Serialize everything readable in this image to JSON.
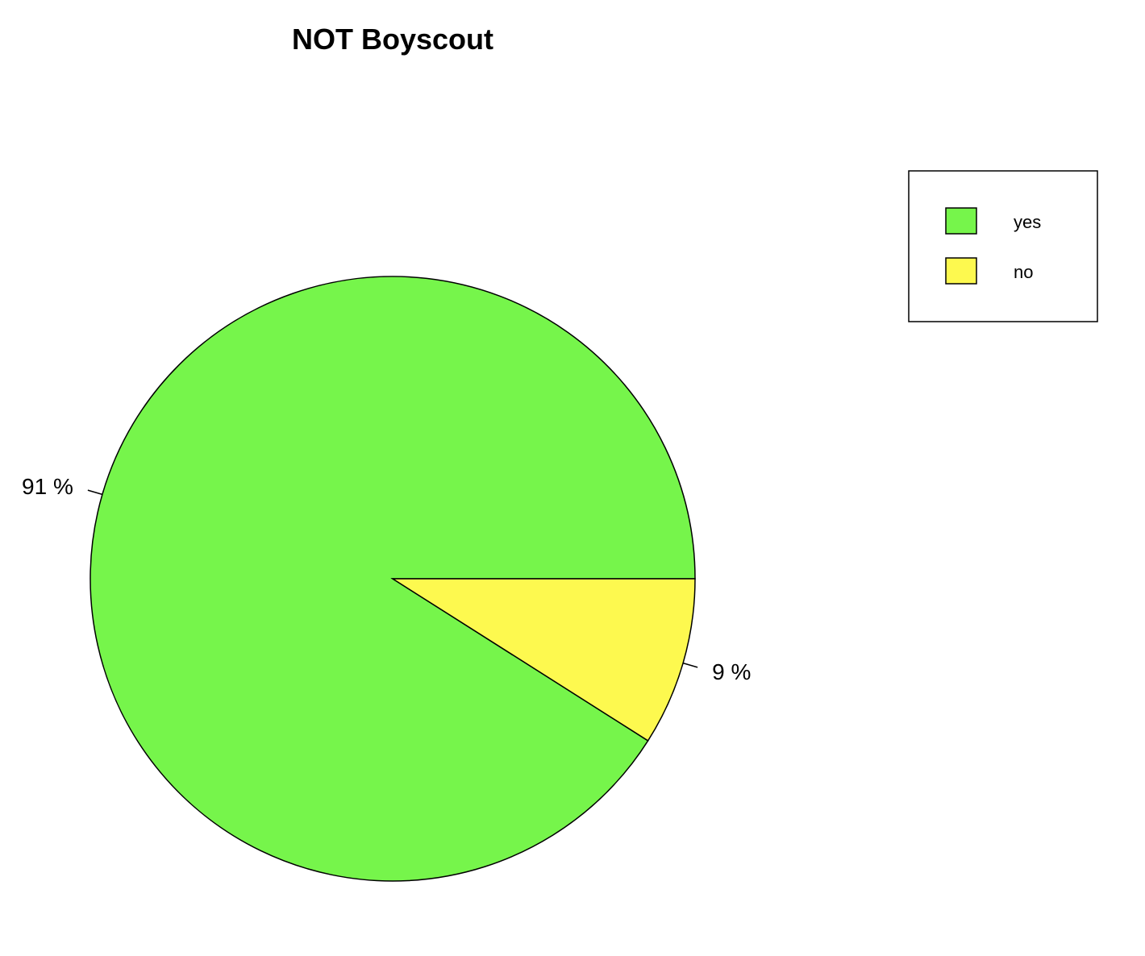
{
  "chart_data": {
    "type": "pie",
    "title": "NOT Boyscout",
    "categories": [
      "yes",
      "no"
    ],
    "values": [
      91,
      9
    ],
    "labels": [
      "91 %",
      "9 %"
    ],
    "colors": [
      "#76f54b",
      "#fdf94f"
    ],
    "start_angle_deg": 0,
    "direction": "clockwise",
    "legend": {
      "position": "top-right",
      "entries": [
        "yes",
        "no"
      ]
    }
  }
}
